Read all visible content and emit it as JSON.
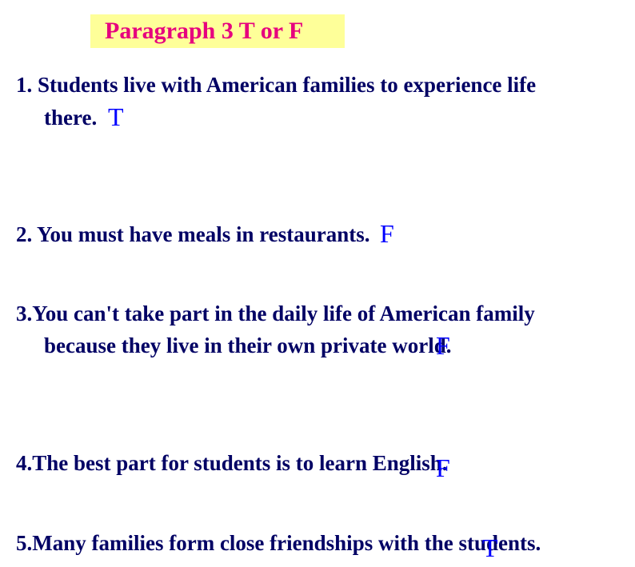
{
  "title": "Paragraph 3    T or F",
  "title_color": "#e6007e",
  "title_bg": "#feff99",
  "title_fontsize": 30,
  "questions": [
    {
      "number": "1.",
      "text_line1": "Students live with American families to experience life",
      "text_line2": "there.",
      "answer": "T"
    },
    {
      "number": "2.",
      "text_line1": "You must have meals in restaurants.",
      "answer": "F"
    },
    {
      "number": "3.",
      "text_line1": "You can't take part in the daily life of American family",
      "text_line2": "because they live in their own private world.",
      "answer": "F"
    },
    {
      "number": "4.",
      "text_line1": "The best part for students is to learn English.",
      "answer": "F"
    },
    {
      "number": "5.",
      "text_line1": "Many families form close friendships with the students.",
      "answer": "T"
    }
  ],
  "question_color": "#000064",
  "question_fontsize": 27,
  "answer_color": "#0000ff",
  "answer_fontsize": 32,
  "background_color": "#ffffff"
}
